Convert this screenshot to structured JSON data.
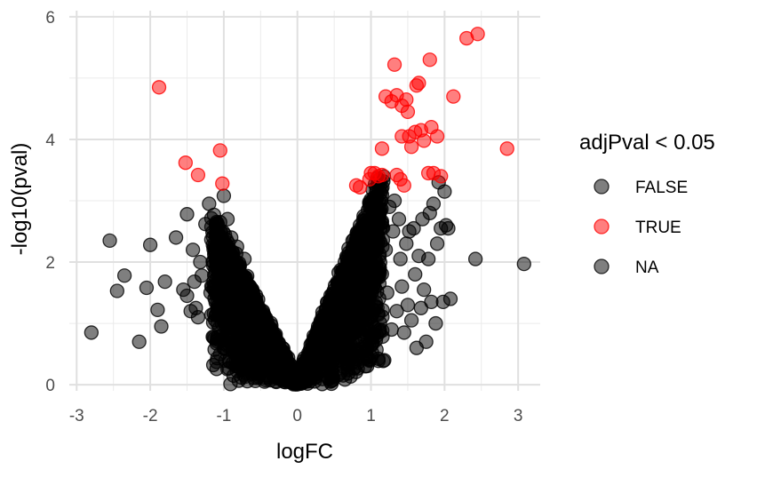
{
  "chart_data": {
    "type": "scatter",
    "xlabel": "logFC",
    "ylabel": "-log10(pval)",
    "xlim": [
      -3.1,
      3.3
    ],
    "ylim": [
      -0.1,
      6.1
    ],
    "x_ticks": [
      -3,
      -2,
      -1,
      0,
      1,
      2,
      3
    ],
    "x_tick_labels": [
      "-3",
      "-2",
      "-1",
      "0",
      "1",
      "2",
      "3"
    ],
    "y_ticks": [
      0,
      2,
      4,
      6
    ],
    "y_tick_labels": [
      "0",
      "2",
      "4",
      "6"
    ],
    "grid": true,
    "legend": {
      "title": "adjPval < 0.05",
      "placement": "right",
      "entries": [
        {
          "label": "FALSE",
          "color": "#000000"
        },
        {
          "label": "TRUE",
          "color": "#ff0000"
        },
        {
          "label": "NA",
          "color": "#000000"
        }
      ]
    },
    "point_opacity": 0.5,
    "series": [
      {
        "name": "FALSE",
        "color": "#000000",
        "points": [
          [
            -2.8,
            0.85
          ],
          [
            -2.55,
            2.35
          ],
          [
            -2.45,
            1.53
          ],
          [
            -2.35,
            1.78
          ],
          [
            -2.15,
            0.7
          ],
          [
            -2.05,
            1.58
          ],
          [
            -2.0,
            2.28
          ],
          [
            -1.9,
            1.22
          ],
          [
            -1.85,
            0.95
          ],
          [
            -1.8,
            1.68
          ],
          [
            -1.65,
            2.4
          ],
          [
            -1.55,
            1.55
          ],
          [
            -1.5,
            1.45
          ],
          [
            -1.5,
            2.78
          ],
          [
            -1.45,
            1.2
          ],
          [
            -1.42,
            2.2
          ],
          [
            -1.4,
            1.68
          ],
          [
            -1.38,
            1.25
          ],
          [
            -1.35,
            1.1
          ],
          [
            -1.32,
            2.0
          ],
          [
            -1.3,
            1.78
          ],
          [
            -1.25,
            2.62
          ],
          [
            -1.2,
            2.95
          ],
          [
            -1.18,
            1.5
          ],
          [
            -1.15,
            0.78
          ],
          [
            -1.12,
            2.2
          ],
          [
            -1.1,
            1.9
          ],
          [
            -1.05,
            0.5
          ],
          [
            -1.05,
            2.65
          ],
          [
            -1.0,
            3.08
          ],
          [
            -0.98,
            0.6
          ],
          [
            -0.95,
            2.7
          ],
          [
            -0.92,
            1.45
          ],
          [
            -0.9,
            2.4
          ],
          [
            -0.88,
            0.35
          ],
          [
            -0.85,
            1.95
          ],
          [
            -0.82,
            2.25
          ],
          [
            -0.8,
            0.42
          ],
          [
            -0.75,
            1.7
          ],
          [
            -0.72,
            2.05
          ],
          [
            -0.68,
            1.3
          ],
          [
            -0.65,
            0.3
          ],
          [
            -0.6,
            1.5
          ],
          [
            -0.55,
            1.1
          ],
          [
            -0.52,
            0.3
          ],
          [
            -0.5,
            0.8
          ],
          [
            -0.45,
            0.9
          ],
          [
            -0.4,
            0.45
          ],
          [
            -0.35,
            0.5
          ],
          [
            -0.3,
            0.2
          ],
          [
            -0.25,
            0.3
          ],
          [
            -0.2,
            0.15
          ],
          [
            -0.15,
            0.1
          ],
          [
            -0.1,
            0.05
          ],
          [
            -0.05,
            0.02
          ],
          [
            0.05,
            0.02
          ],
          [
            0.1,
            0.06
          ],
          [
            0.15,
            0.12
          ],
          [
            0.2,
            0.2
          ],
          [
            0.25,
            0.35
          ],
          [
            0.3,
            0.4
          ],
          [
            0.35,
            0.55
          ],
          [
            0.4,
            0.7
          ],
          [
            0.45,
            0.5
          ],
          [
            0.5,
            0.9
          ],
          [
            0.55,
            1.2
          ],
          [
            0.6,
            1.5
          ],
          [
            0.62,
            0.6
          ],
          [
            0.65,
            1.8
          ],
          [
            0.7,
            2.0
          ],
          [
            0.72,
            0.9
          ],
          [
            0.75,
            2.35
          ],
          [
            0.8,
            2.2
          ],
          [
            0.82,
            0.5
          ],
          [
            0.85,
            2.6
          ],
          [
            0.88,
            1.4
          ],
          [
            0.9,
            2.75
          ],
          [
            0.92,
            0.3
          ],
          [
            0.95,
            1.7
          ],
          [
            0.98,
            2.9
          ],
          [
            1.0,
            1.1
          ],
          [
            1.02,
            3.0
          ],
          [
            1.05,
            2.4
          ],
          [
            1.08,
            0.8
          ],
          [
            1.1,
            2.7
          ],
          [
            1.12,
            1.9
          ],
          [
            1.15,
            3.1
          ],
          [
            1.18,
            0.4
          ],
          [
            1.2,
            2.2
          ],
          [
            1.22,
            1.5
          ],
          [
            1.25,
            2.9
          ],
          [
            1.28,
            0.9
          ],
          [
            1.3,
            2.5
          ],
          [
            1.32,
            3.0
          ],
          [
            1.35,
            1.2
          ],
          [
            1.38,
            2.7
          ],
          [
            1.4,
            2.05
          ],
          [
            1.42,
            1.6
          ],
          [
            1.45,
            0.85
          ],
          [
            1.48,
            2.3
          ],
          [
            1.5,
            1.3
          ],
          [
            1.52,
            2.5
          ],
          [
            1.55,
            1.05
          ],
          [
            1.58,
            2.55
          ],
          [
            1.6,
            1.8
          ],
          [
            1.62,
            0.6
          ],
          [
            1.65,
            2.1
          ],
          [
            1.68,
            1.25
          ],
          [
            1.7,
            2.7
          ],
          [
            1.72,
            1.55
          ],
          [
            1.75,
            0.7
          ],
          [
            1.78,
            2.05
          ],
          [
            1.8,
            2.8
          ],
          [
            1.82,
            1.35
          ],
          [
            1.85,
            2.95
          ],
          [
            1.88,
            1.0
          ],
          [
            1.9,
            2.3
          ],
          [
            1.92,
            3.3
          ],
          [
            1.95,
            2.55
          ],
          [
            1.98,
            1.35
          ],
          [
            2.0,
            3.15
          ],
          [
            2.02,
            2.6
          ],
          [
            2.05,
            2.55
          ],
          [
            2.08,
            1.4
          ],
          [
            2.42,
            2.05
          ],
          [
            3.08,
            1.97
          ]
        ]
      },
      {
        "name": "TRUE",
        "color": "#ff0000",
        "points": [
          [
            -1.88,
            4.85
          ],
          [
            -1.52,
            3.62
          ],
          [
            -1.35,
            3.42
          ],
          [
            -1.05,
            3.82
          ],
          [
            -1.02,
            3.28
          ],
          [
            0.8,
            3.25
          ],
          [
            0.85,
            3.22
          ],
          [
            0.98,
            3.35
          ],
          [
            1.0,
            3.45
          ],
          [
            1.05,
            3.45
          ],
          [
            1.1,
            3.4
          ],
          [
            1.15,
            3.42
          ],
          [
            1.15,
            3.85
          ],
          [
            1.2,
            4.7
          ],
          [
            1.28,
            4.62
          ],
          [
            1.32,
            5.22
          ],
          [
            1.35,
            3.42
          ],
          [
            1.35,
            4.72
          ],
          [
            1.4,
            3.35
          ],
          [
            1.42,
            4.55
          ],
          [
            1.42,
            4.05
          ],
          [
            1.45,
            3.25
          ],
          [
            1.48,
            4.65
          ],
          [
            1.5,
            4.45
          ],
          [
            1.52,
            4.05
          ],
          [
            1.55,
            3.88
          ],
          [
            1.6,
            4.12
          ],
          [
            1.62,
            4.88
          ],
          [
            1.65,
            4.92
          ],
          [
            1.68,
            4.15
          ],
          [
            1.72,
            3.98
          ],
          [
            1.78,
            3.45
          ],
          [
            1.8,
            5.3
          ],
          [
            1.82,
            4.2
          ],
          [
            1.85,
            3.45
          ],
          [
            1.9,
            4.05
          ],
          [
            1.95,
            3.4
          ],
          [
            2.12,
            4.7
          ],
          [
            2.3,
            5.65
          ],
          [
            2.45,
            5.72
          ],
          [
            2.85,
            3.85
          ]
        ]
      }
    ]
  }
}
